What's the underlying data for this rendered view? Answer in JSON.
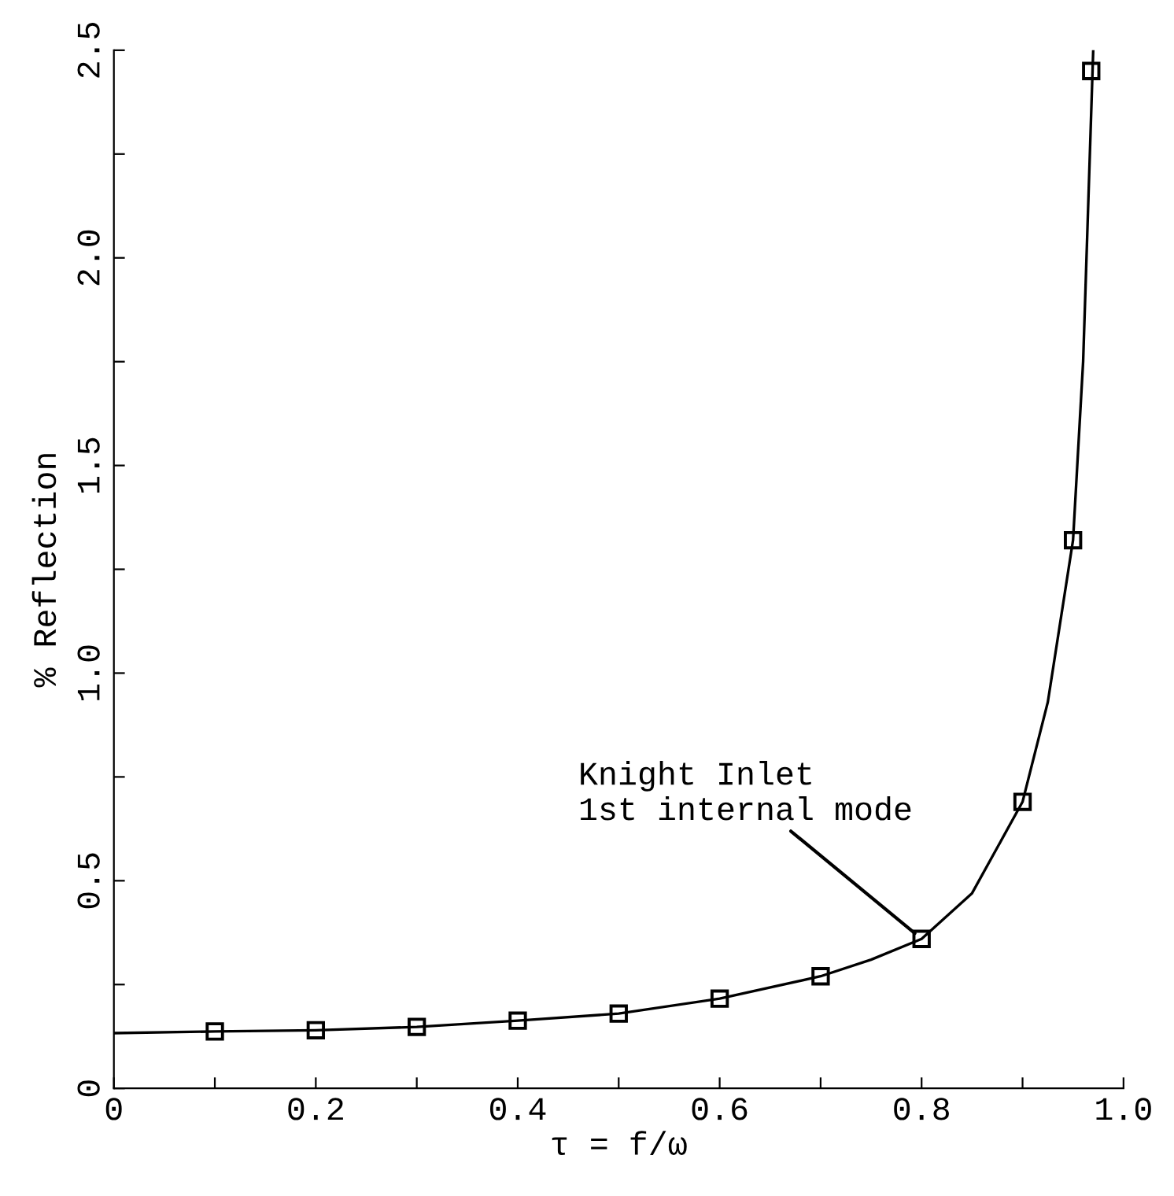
{
  "chart_data": {
    "type": "scatter",
    "xlabel": "τ = f/ω",
    "ylabel": "% Reflection",
    "series": [
      {
        "type": "line",
        "color": "#000000",
        "marker": "none",
        "line_style": "solid",
        "x": [
          0,
          0.1,
          0.2,
          0.3,
          0.4,
          0.5,
          0.6,
          0.7,
          0.75,
          0.8,
          0.85,
          0.9,
          0.925,
          0.95,
          0.96,
          0.97
        ],
        "values": [
          0.133,
          0.137,
          0.14,
          0.148,
          0.163,
          0.18,
          0.216,
          0.27,
          0.31,
          0.36,
          0.47,
          0.69,
          0.93,
          1.32,
          1.75,
          2.5
        ]
      },
      {
        "color": "#000000",
        "marker": "square",
        "x": [
          0.1,
          0.2,
          0.3,
          0.4,
          0.5,
          0.6,
          0.7,
          0.8,
          0.9,
          0.95,
          0.968
        ],
        "values": [
          0.137,
          0.14,
          0.148,
          0.163,
          0.18,
          0.216,
          0.27,
          0.36,
          0.69,
          1.32,
          2.45
        ]
      }
    ],
    "annotations": [
      {
        "text": "Knight Inlet\n1st internal mode",
        "x": 0.8,
        "y": 0.36
      }
    ],
    "xlim": [
      0,
      1.0
    ],
    "ylim": [
      0,
      2.5
    ],
    "xticks": [
      {
        "value": 0,
        "label": "0"
      },
      {
        "value": 0.1,
        "label": null
      },
      0.2,
      {
        "value": 0.3,
        "label": null
      },
      0.4,
      {
        "value": 0.5,
        "label": null
      },
      0.6,
      {
        "value": 0.7,
        "label": null
      },
      0.8,
      {
        "value": 0.9,
        "label": null
      },
      {
        "value": 1.0,
        "label": "1.0"
      }
    ],
    "yticks": [
      {
        "value": 0,
        "label": "0"
      },
      {
        "value": 0.25,
        "label": null
      },
      0.5,
      {
        "value": 0.75,
        "label": null
      },
      {
        "value": 1.0,
        "label": "1.0"
      },
      {
        "value": 1.25,
        "label": null
      },
      1.5,
      {
        "value": 1.75,
        "label": null
      },
      {
        "value": 2.0,
        "label": "2.0"
      },
      {
        "value": 2.25,
        "label": null
      },
      2.5
    ],
    "grid": false,
    "legend": false
  }
}
